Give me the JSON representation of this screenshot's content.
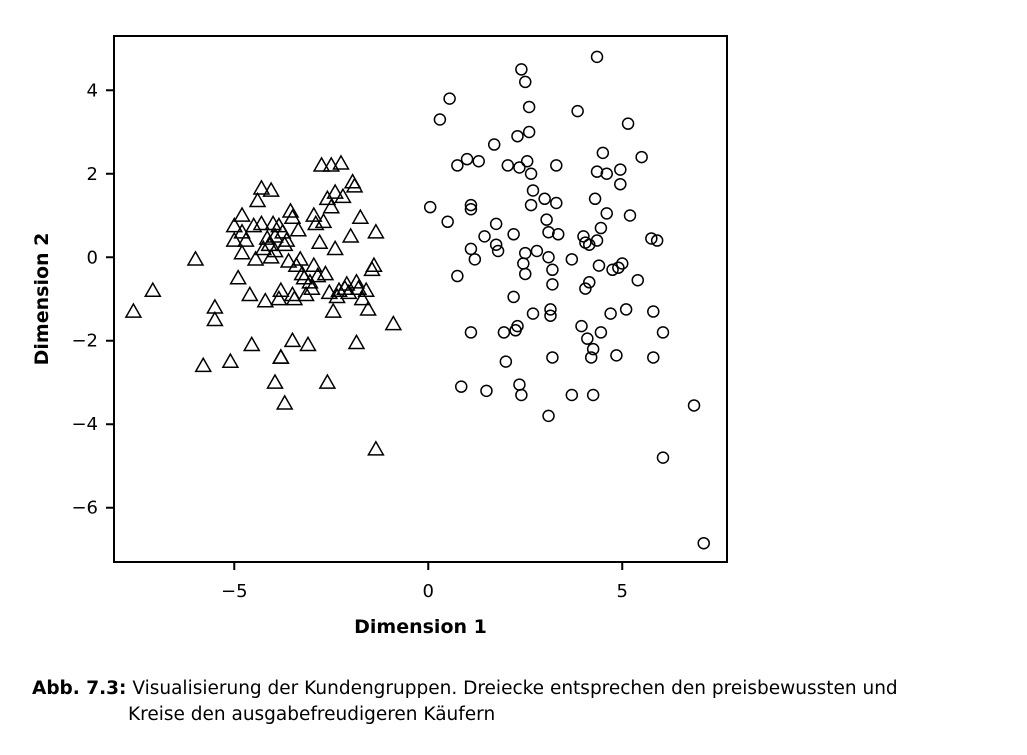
{
  "chart_data": {
    "type": "scatter",
    "title": "",
    "xlabel": "Dimension 1",
    "ylabel": "Dimension 2",
    "xlim": [
      -8.1,
      7.7
    ],
    "ylim": [
      -7.3,
      5.3
    ],
    "xticks": [
      {
        "value": -5,
        "label": "−5"
      },
      {
        "value": 0,
        "label": "0"
      },
      {
        "value": 5,
        "label": "5"
      }
    ],
    "yticks": [
      {
        "value": 4,
        "label": "4"
      },
      {
        "value": 2,
        "label": "2"
      },
      {
        "value": 0,
        "label": "0"
      },
      {
        "value": -2,
        "label": "−2"
      },
      {
        "value": -4,
        "label": "−4"
      },
      {
        "value": -6,
        "label": "−6"
      }
    ],
    "grid": false,
    "series": [
      {
        "name": "preisbewusst",
        "marker": "triangle",
        "points": [
          [
            -7.6,
            -1.3
          ],
          [
            -7.1,
            -0.8
          ],
          [
            -6.0,
            -0.05
          ],
          [
            -5.8,
            -2.6
          ],
          [
            -5.5,
            -1.2
          ],
          [
            -5.5,
            -1.5
          ],
          [
            -5.1,
            -2.5
          ],
          [
            -5.0,
            0.75
          ],
          [
            -5.0,
            0.4
          ],
          [
            -4.9,
            -0.5
          ],
          [
            -4.8,
            1.0
          ],
          [
            -4.8,
            0.6
          ],
          [
            -4.7,
            0.4
          ],
          [
            -4.6,
            -0.9
          ],
          [
            -4.55,
            -2.1
          ],
          [
            -4.5,
            0.75
          ],
          [
            -4.45,
            -0.05
          ],
          [
            -4.4,
            1.35
          ],
          [
            -4.3,
            0.8
          ],
          [
            -4.3,
            1.65
          ],
          [
            -4.25,
            0.2
          ],
          [
            -4.2,
            -1.05
          ],
          [
            -4.15,
            0.45
          ],
          [
            -4.1,
            0.3
          ],
          [
            -4.05,
            1.6
          ],
          [
            -4.05,
            0.0
          ],
          [
            -4.0,
            0.8
          ],
          [
            -3.95,
            0.5
          ],
          [
            -3.95,
            0.15
          ],
          [
            -3.85,
            0.75
          ],
          [
            -3.85,
            -1.0
          ],
          [
            -3.8,
            -2.4
          ],
          [
            -3.8,
            -0.8
          ],
          [
            -3.8,
            -2.4
          ],
          [
            -3.75,
            0.6
          ],
          [
            -3.7,
            -3.5
          ],
          [
            -3.65,
            0.4
          ],
          [
            -3.6,
            -0.1
          ],
          [
            -3.55,
            1.1
          ],
          [
            -3.5,
            -0.9
          ],
          [
            -3.5,
            -2.0
          ],
          [
            -3.45,
            -1.0
          ],
          [
            -3.4,
            -0.2
          ],
          [
            -3.35,
            0.65
          ],
          [
            -3.3,
            -0.05
          ],
          [
            -3.25,
            -0.4
          ],
          [
            -3.2,
            -0.5
          ],
          [
            -3.15,
            -0.9
          ],
          [
            -3.1,
            -2.1
          ],
          [
            -3.05,
            -0.6
          ],
          [
            -3.0,
            -0.75
          ],
          [
            -2.95,
            -0.2
          ],
          [
            -2.9,
            0.8
          ],
          [
            -2.85,
            -0.45
          ],
          [
            -2.8,
            0.35
          ],
          [
            -2.75,
            2.2
          ],
          [
            -2.7,
            0.85
          ],
          [
            -2.65,
            -0.4
          ],
          [
            -2.6,
            1.4
          ],
          [
            -2.55,
            -0.85
          ],
          [
            -2.5,
            2.2
          ],
          [
            -2.5,
            1.2
          ],
          [
            -2.45,
            -1.3
          ],
          [
            -2.4,
            1.55
          ],
          [
            -2.4,
            0.2
          ],
          [
            -2.35,
            -0.95
          ],
          [
            -2.3,
            -0.8
          ],
          [
            -2.25,
            2.25
          ],
          [
            -2.2,
            1.45
          ],
          [
            -2.15,
            -0.75
          ],
          [
            -2.1,
            -0.65
          ],
          [
            -2.05,
            -0.85
          ],
          [
            -2.0,
            0.5
          ],
          [
            -1.95,
            1.8
          ],
          [
            -1.9,
            1.7
          ],
          [
            -1.85,
            -0.6
          ],
          [
            -1.85,
            -2.05
          ],
          [
            -1.8,
            -0.75
          ],
          [
            -1.75,
            0.95
          ],
          [
            -1.7,
            -1.0
          ],
          [
            -1.6,
            -0.8
          ],
          [
            -1.55,
            -1.25
          ],
          [
            -1.45,
            -0.3
          ],
          [
            -1.4,
            -0.2
          ],
          [
            -1.35,
            0.6
          ],
          [
            -1.35,
            -4.6
          ],
          [
            -0.9,
            -1.6
          ],
          [
            -3.95,
            -3.0
          ],
          [
            -2.6,
            -3.0
          ],
          [
            -4.8,
            0.1
          ],
          [
            -2.95,
            1.0
          ],
          [
            -3.5,
            0.95
          ],
          [
            -3.7,
            0.3
          ]
        ]
      },
      {
        "name": "ausgabefreudig",
        "marker": "circle",
        "points": [
          [
            0.05,
            1.2
          ],
          [
            0.3,
            3.3
          ],
          [
            0.5,
            0.85
          ],
          [
            0.55,
            3.8
          ],
          [
            0.75,
            2.2
          ],
          [
            0.75,
            -0.45
          ],
          [
            0.85,
            -3.1
          ],
          [
            1.0,
            2.35
          ],
          [
            1.1,
            1.25
          ],
          [
            1.1,
            1.15
          ],
          [
            1.1,
            0.2
          ],
          [
            1.1,
            -1.8
          ],
          [
            1.2,
            -0.05
          ],
          [
            1.3,
            2.3
          ],
          [
            1.45,
            0.5
          ],
          [
            1.5,
            -3.2
          ],
          [
            1.7,
            2.7
          ],
          [
            1.75,
            0.3
          ],
          [
            1.75,
            0.8
          ],
          [
            1.8,
            0.15
          ],
          [
            2.0,
            -2.5
          ],
          [
            2.05,
            2.2
          ],
          [
            2.2,
            0.55
          ],
          [
            2.2,
            -0.95
          ],
          [
            2.25,
            -1.75
          ],
          [
            2.3,
            -1.65
          ],
          [
            2.3,
            2.9
          ],
          [
            2.35,
            -3.05
          ],
          [
            2.35,
            2.15
          ],
          [
            2.4,
            -3.3
          ],
          [
            2.4,
            4.5
          ],
          [
            2.45,
            -0.15
          ],
          [
            2.5,
            -0.4
          ],
          [
            2.5,
            0.1
          ],
          [
            2.5,
            4.2
          ],
          [
            2.55,
            2.3
          ],
          [
            2.6,
            3.0
          ],
          [
            2.6,
            3.6
          ],
          [
            2.65,
            1.25
          ],
          [
            2.65,
            2.0
          ],
          [
            2.7,
            -1.35
          ],
          [
            2.7,
            1.6
          ],
          [
            2.8,
            0.15
          ],
          [
            3.0,
            1.4
          ],
          [
            3.05,
            0.9
          ],
          [
            3.1,
            0.6
          ],
          [
            3.1,
            0.0
          ],
          [
            3.1,
            -3.8
          ],
          [
            3.15,
            -1.25
          ],
          [
            3.15,
            -1.4
          ],
          [
            3.2,
            -0.3
          ],
          [
            3.2,
            -0.65
          ],
          [
            3.2,
            -2.4
          ],
          [
            3.3,
            1.3
          ],
          [
            3.3,
            2.2
          ],
          [
            3.35,
            0.55
          ],
          [
            3.7,
            -0.05
          ],
          [
            3.7,
            -3.3
          ],
          [
            3.85,
            3.5
          ],
          [
            3.95,
            -1.65
          ],
          [
            4.0,
            0.5
          ],
          [
            4.05,
            0.35
          ],
          [
            4.05,
            -0.75
          ],
          [
            4.1,
            -1.95
          ],
          [
            4.15,
            0.3
          ],
          [
            4.15,
            -0.6
          ],
          [
            4.2,
            -2.4
          ],
          [
            4.25,
            -2.2
          ],
          [
            4.3,
            1.4
          ],
          [
            4.35,
            0.4
          ],
          [
            4.35,
            2.05
          ],
          [
            4.35,
            4.8
          ],
          [
            4.4,
            -0.2
          ],
          [
            4.45,
            0.7
          ],
          [
            4.45,
            -1.8
          ],
          [
            4.5,
            2.5
          ],
          [
            4.6,
            2.0
          ],
          [
            4.6,
            1.05
          ],
          [
            4.7,
            -1.35
          ],
          [
            4.75,
            -0.3
          ],
          [
            4.85,
            -2.35
          ],
          [
            4.9,
            -0.25
          ],
          [
            4.95,
            2.1
          ],
          [
            4.95,
            1.75
          ],
          [
            5.0,
            -0.15
          ],
          [
            5.1,
            -1.25
          ],
          [
            5.15,
            3.2
          ],
          [
            5.2,
            1.0
          ],
          [
            5.4,
            -0.55
          ],
          [
            5.5,
            2.4
          ],
          [
            5.75,
            0.45
          ],
          [
            5.8,
            -1.3
          ],
          [
            5.8,
            -2.4
          ],
          [
            5.9,
            0.4
          ],
          [
            6.05,
            -1.8
          ],
          [
            6.05,
            -4.8
          ],
          [
            6.85,
            -3.55
          ],
          [
            7.1,
            -6.85
          ],
          [
            4.25,
            -3.3
          ],
          [
            1.95,
            -1.8
          ]
        ]
      }
    ]
  },
  "caption": {
    "label": "Abb. 7.3:",
    "line1": "Visualisierung der Kundengruppen. Dreiecke entsprechen den preisbewussten und",
    "line2": "Kreise den ausgabefreudigeren Käufern"
  }
}
